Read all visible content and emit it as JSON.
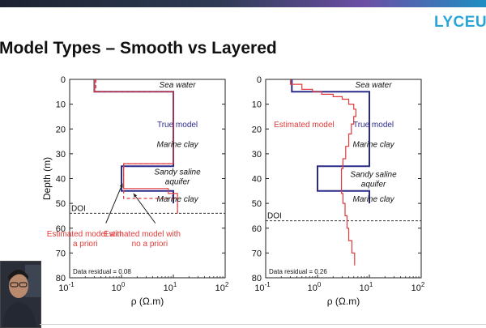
{
  "logo": {
    "text": "LYCEU"
  },
  "slide": {
    "title": "Model Types – Smooth vs Layered"
  },
  "colors": {
    "true_model": "#2b2b8c",
    "estimated": "#e23a3a",
    "axes": "#222222",
    "doi": "#333333"
  },
  "chart_data": [
    {
      "type": "line",
      "title": "",
      "xlabel": "ρ (Ω.m)",
      "ylabel": "Depth (m)",
      "xscale": "log",
      "xlim": [
        0.1,
        100
      ],
      "ylim": [
        80,
        0
      ],
      "x_ticks": [
        "10",
        "10",
        "10",
        "10"
      ],
      "x_tick_exps": [
        "-1",
        "0",
        "1",
        "2"
      ],
      "y_ticks": [
        "0",
        "10",
        "20",
        "30",
        "40",
        "50",
        "60",
        "70",
        "80"
      ],
      "series": [
        {
          "name": "True model",
          "color": "#2b2b8c",
          "dash": "",
          "points": [
            [
              0.3,
              0
            ],
            [
              0.3,
              5
            ],
            [
              10,
              5
            ],
            [
              10,
              35
            ],
            [
              1,
              35
            ],
            [
              1,
              45
            ],
            [
              10,
              45
            ],
            [
              10,
              50
            ]
          ]
        },
        {
          "name": "Estimated model with a priori",
          "color": "#e23a3a",
          "dash": "",
          "points": [
            [
              0.3,
              0
            ],
            [
              0.3,
              5
            ],
            [
              10,
              5
            ],
            [
              10,
              34
            ],
            [
              1.1,
              34
            ],
            [
              1.1,
              44
            ],
            [
              8,
              44
            ],
            [
              8,
              46
            ],
            [
              12,
              46
            ],
            [
              12,
              54
            ]
          ]
        },
        {
          "name": "Estimated model with no a priori",
          "color": "#e23a3a",
          "dash": "4,3",
          "points": [
            [
              0.32,
              0
            ],
            [
              0.32,
              5
            ],
            [
              10,
              5
            ],
            [
              10,
              34
            ],
            [
              1.1,
              34
            ],
            [
              1.1,
              48
            ],
            [
              12,
              48
            ],
            [
              12,
              54
            ]
          ]
        }
      ],
      "doi": 54,
      "doi_label": "DOI",
      "labels": [
        {
          "text": "Sea water",
          "x": 12,
          "y": 2,
          "color": "#111111",
          "italic": true
        },
        {
          "text": "True model",
          "x": 12,
          "y": 18,
          "color": "#2b2b8c",
          "italic": false
        },
        {
          "text": "Marine clay",
          "x": 12,
          "y": 26,
          "color": "#111111",
          "italic": true
        },
        {
          "text": "Sandy saline",
          "x": 12,
          "y": 37,
          "color": "#111111",
          "italic": true
        },
        {
          "text": "aquifer",
          "x": 12,
          "y": 41,
          "color": "#111111",
          "italic": true
        },
        {
          "text": "Marine clay",
          "x": 12,
          "y": 48,
          "color": "#111111",
          "italic": true
        },
        {
          "text": "Estimated model with",
          "x": 0.2,
          "y": 62,
          "color": "#e23a3a",
          "italic": false
        },
        {
          "text": "a priori",
          "x": 0.2,
          "y": 66,
          "color": "#e23a3a",
          "italic": false
        },
        {
          "text": "Estimated model with",
          "x": 2.5,
          "y": 62,
          "color": "#e23a3a",
          "italic": false
        },
        {
          "text": "no a priori",
          "x": 3.5,
          "y": 66,
          "color": "#e23a3a",
          "italic": false
        }
      ],
      "residual": "Data residual = 0.08"
    },
    {
      "type": "line",
      "title": "",
      "xlabel": "ρ (Ω.m)",
      "ylabel": "",
      "xscale": "log",
      "xlim": [
        0.1,
        100
      ],
      "ylim": [
        80,
        0
      ],
      "x_ticks": [
        "10",
        "10",
        "10",
        "10"
      ],
      "x_tick_exps": [
        "-1",
        "0",
        "1",
        "2"
      ],
      "y_ticks": [
        "0",
        "10",
        "20",
        "30",
        "40",
        "50",
        "60",
        "70",
        "80"
      ],
      "series": [
        {
          "name": "True model",
          "color": "#2b2b8c",
          "dash": "",
          "points": [
            [
              0.32,
              0
            ],
            [
              0.32,
              5
            ],
            [
              10,
              5
            ],
            [
              10,
              35
            ],
            [
              1,
              35
            ],
            [
              1,
              45
            ],
            [
              10,
              45
            ],
            [
              10,
              50
            ]
          ]
        },
        {
          "name": "Estimated model",
          "color": "#e23a3a",
          "dash": "",
          "points": [
            [
              0.3,
              0
            ],
            [
              0.3,
              2
            ],
            [
              0.5,
              2
            ],
            [
              0.5,
              4
            ],
            [
              0.8,
              4
            ],
            [
              0.8,
              5
            ],
            [
              1.2,
              5
            ],
            [
              1.2,
              6
            ],
            [
              2,
              6
            ],
            [
              2,
              7
            ],
            [
              3,
              7
            ],
            [
              3,
              8
            ],
            [
              4,
              8
            ],
            [
              4,
              10
            ],
            [
              5,
              10
            ],
            [
              5,
              12
            ],
            [
              5.5,
              12
            ],
            [
              5.5,
              15
            ],
            [
              5,
              15
            ],
            [
              5,
              18
            ],
            [
              4.5,
              18
            ],
            [
              4.5,
              22
            ],
            [
              4,
              22
            ],
            [
              4,
              27
            ],
            [
              3.5,
              27
            ],
            [
              3.5,
              32
            ],
            [
              3.1,
              32
            ],
            [
              3.1,
              36
            ],
            [
              2.9,
              36
            ],
            [
              2.9,
              41
            ],
            [
              2.9,
              46
            ],
            [
              3.1,
              46
            ],
            [
              3.1,
              50
            ],
            [
              3.4,
              50
            ],
            [
              3.4,
              55
            ],
            [
              3.7,
              55
            ],
            [
              3.7,
              60
            ],
            [
              4,
              60
            ],
            [
              4,
              65
            ],
            [
              4.6,
              65
            ],
            [
              4.6,
              70
            ],
            [
              5.2,
              70
            ],
            [
              5.2,
              75
            ]
          ]
        }
      ],
      "doi": 57,
      "doi_label": "DOI",
      "labels": [
        {
          "text": "Sea water",
          "x": 12,
          "y": 2,
          "color": "#111111",
          "italic": true
        },
        {
          "text": "Estimated model",
          "x": 0.55,
          "y": 18,
          "color": "#e23a3a",
          "italic": false
        },
        {
          "text": "True model",
          "x": 12,
          "y": 18,
          "color": "#2b2b8c",
          "italic": false
        },
        {
          "text": "Marine clay",
          "x": 12,
          "y": 26,
          "color": "#111111",
          "italic": true
        },
        {
          "text": "Sandy saline",
          "x": 12,
          "y": 38,
          "color": "#111111",
          "italic": true
        },
        {
          "text": "aquifer",
          "x": 12,
          "y": 42,
          "color": "#111111",
          "italic": true
        },
        {
          "text": "Marine clay",
          "x": 12,
          "y": 48,
          "color": "#111111",
          "italic": true
        }
      ],
      "residual": "Data residual = 0.26"
    }
  ]
}
